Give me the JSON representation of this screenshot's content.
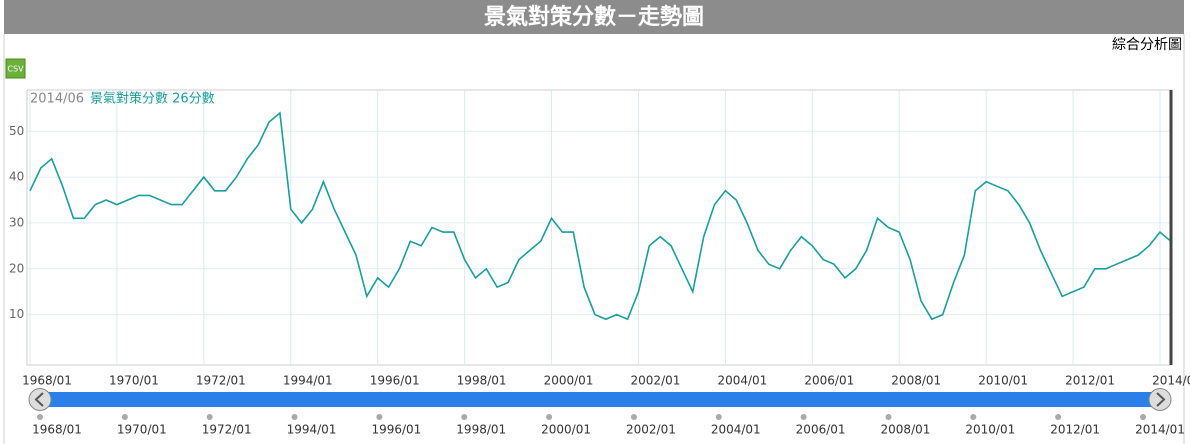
{
  "chart_data": {
    "type": "line",
    "title": "景氣對策分數－走勢圖",
    "link_text": "綜合分析圖",
    "button_text": "CSV",
    "tooltip_date": "2014/06",
    "tooltip_text": "景氣對策分數 26分數",
    "color": "#1a9e9e",
    "categories": [
      "1968/01",
      null,
      null,
      null,
      null,
      null,
      null,
      null,
      "1970/01",
      null,
      null,
      null,
      null,
      null,
      null,
      null,
      "1972/01",
      null,
      null,
      null,
      null,
      null,
      null,
      null,
      "1994/01",
      null,
      null,
      null,
      null,
      null,
      null,
      null,
      "1996/01",
      null,
      null,
      null,
      null,
      null,
      null,
      null,
      "1998/01",
      null,
      null,
      null,
      null,
      null,
      null,
      null,
      "2000/01",
      null,
      null,
      null,
      null,
      null,
      null,
      null,
      "2002/01",
      null,
      null,
      null,
      null,
      null,
      null,
      null,
      "2004/01",
      null,
      null,
      null,
      null,
      null,
      null,
      null,
      "2006/01",
      null,
      null,
      null,
      null,
      null,
      null,
      null,
      "2008/01",
      null,
      null,
      null,
      null,
      null,
      null,
      null,
      "2010/01",
      null,
      null,
      null,
      null,
      null,
      null,
      null,
      "2012/01",
      null,
      null,
      null,
      null,
      null,
      null,
      null,
      "2014/01",
      null
    ],
    "values": [
      37,
      42,
      44,
      38,
      31,
      31,
      34,
      35,
      34,
      35,
      36,
      36,
      35,
      34,
      34,
      37,
      40,
      37,
      37,
      40,
      44,
      47,
      52,
      54,
      33,
      30,
      33,
      39,
      33,
      28,
      23,
      14,
      18,
      16,
      20,
      26,
      25,
      29,
      28,
      28,
      22,
      18,
      20,
      16,
      17,
      22,
      24,
      26,
      31,
      28,
      28,
      16,
      10,
      9,
      10,
      9,
      15,
      25,
      27,
      25,
      20,
      15,
      27,
      34,
      37,
      35,
      30,
      24,
      21,
      20,
      24,
      27,
      25,
      22,
      21,
      18,
      20,
      24,
      31,
      29,
      28,
      22,
      13,
      9,
      10,
      17,
      23,
      37,
      39,
      38,
      37,
      34,
      30,
      24,
      19,
      14,
      15,
      16,
      20,
      20,
      21,
      22,
      23,
      25,
      28,
      26
    ],
    "ylim": [
      -1,
      59
    ],
    "yticks": [
      10,
      20,
      30,
      40,
      50
    ],
    "grid": true
  }
}
